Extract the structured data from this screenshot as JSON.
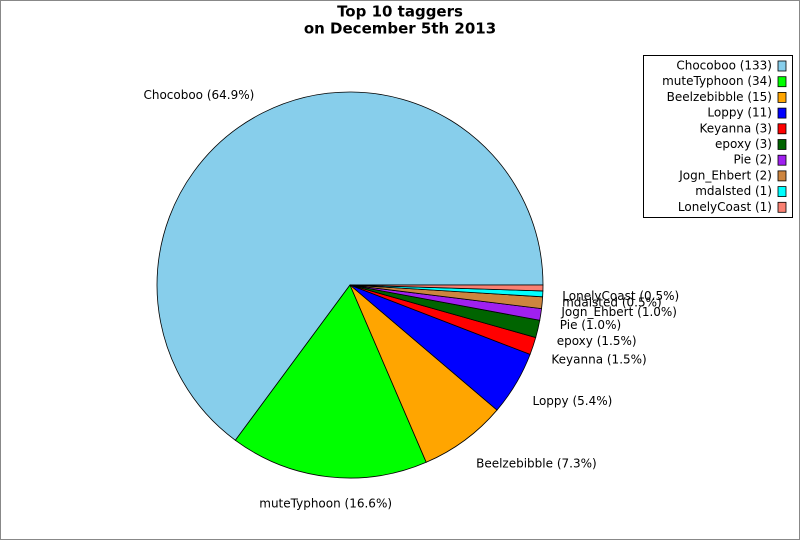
{
  "chart_data": {
    "type": "pie",
    "title": "Top 10 taggers",
    "subtitle": "on December 5th 2013",
    "categories": [
      "Chocoboo",
      "muteTyphoon",
      "Beelzebibble",
      "Loppy",
      "Keyanna",
      "epoxy",
      "Pie",
      "Jogn_Ehbert",
      "mdalsted",
      "LonelyCoast"
    ],
    "values": [
      133,
      34,
      15,
      11,
      3,
      3,
      2,
      2,
      1,
      1
    ],
    "value_labels": [
      "Chocoboo (64.9%)",
      "muteTyphoon (16.6%)",
      "Beelzebibble (7.3%)",
      "Loppy (5.4%)",
      "Keyanna (1.5%)",
      "epoxy (1.5%)",
      "Pie (1.0%)",
      "Jogn_Ehbert (1.0%)",
      "mdalsted (0.5%)",
      "LonelyCoast (0.5%)"
    ],
    "legend_labels": [
      "Chocoboo (133)",
      "muteTyphoon (34)",
      "Beelzebibble (15)",
      "Loppy (11)",
      "Keyanna (3)",
      "epoxy (3)",
      "Pie (2)",
      "Jogn_Ehbert (2)",
      "mdalsted (1)",
      "LonelyCoast (1)"
    ],
    "colors": [
      "#87ceeb",
      "#00ff00",
      "#ffa500",
      "#0000ff",
      "#ff0000",
      "#006400",
      "#a020f0",
      "#cd853f",
      "#00ffff",
      "#fa8072"
    ],
    "legend": "top-right"
  }
}
